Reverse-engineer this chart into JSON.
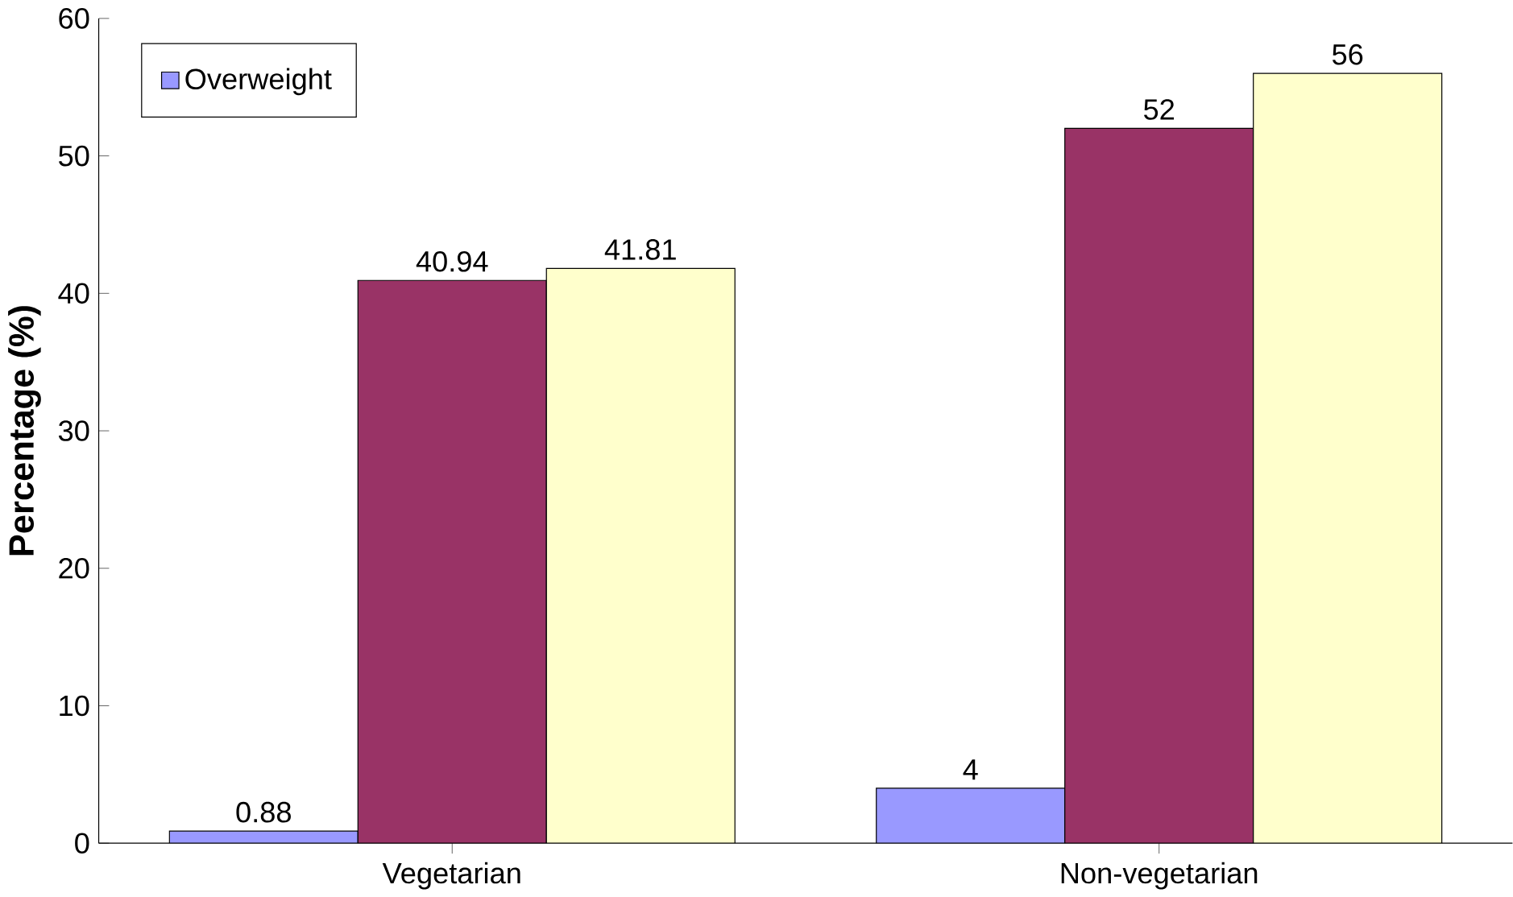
{
  "chart_data": {
    "type": "bar",
    "ylabel": "Percentage (%)",
    "categories": [
      "Vegetarian",
      "Non-vegetarian"
    ],
    "series": [
      {
        "name": "Overweight",
        "color": "#9999ff",
        "values": [
          0.88,
          4
        ]
      },
      {
        "color": "#993366",
        "values": [
          40.94,
          52
        ]
      },
      {
        "color": "#ffffcc",
        "values": [
          41.81,
          56
        ]
      }
    ],
    "data_labels": true,
    "ylim": [
      0,
      60
    ],
    "yticks": [
      0,
      10,
      20,
      30,
      40,
      50,
      60
    ],
    "grid": false,
    "legend": "top left"
  }
}
